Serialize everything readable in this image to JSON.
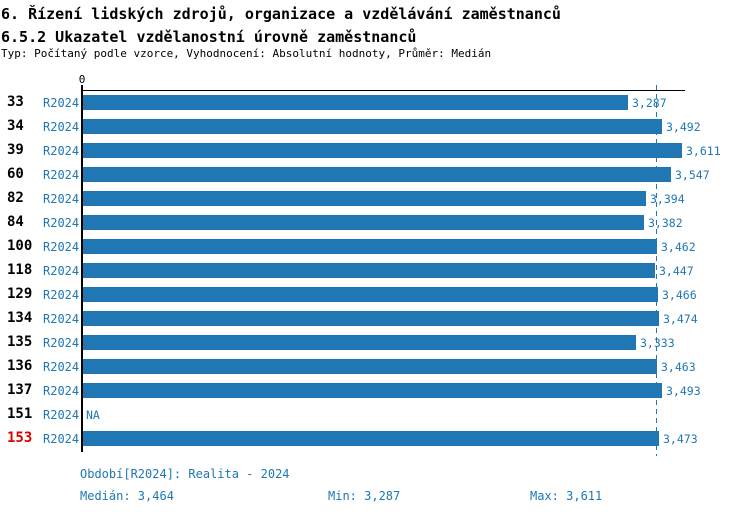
{
  "header": {
    "title_line1": "6. Řízení lidských zdrojů, organizace a vzdělávání zaměstnanců",
    "title_line2": "6.5.2 Ukazatel vzdělanostní úrovně zaměstnanců",
    "subtitle": "Typ: Počítaný podle vzorce, Vyhodnocení: Absolutní hodnoty, Průměr: Medián"
  },
  "chart_data": {
    "type": "bar",
    "orientation": "horizontal",
    "title": "6.5.2 Ukazatel vzdělanostní úrovně zaměstnanců",
    "categories": [
      "33",
      "34",
      "39",
      "60",
      "82",
      "84",
      "100",
      "118",
      "129",
      "134",
      "135",
      "136",
      "137",
      "151",
      "153"
    ],
    "period_label": "R2024",
    "series": [
      {
        "name": "R2024",
        "values": [
          3287,
          3492,
          3611,
          3547,
          3394,
          3382,
          3462,
          3447,
          3466,
          3474,
          3333,
          3463,
          3493,
          null,
          3473
        ]
      }
    ],
    "value_labels": [
      "3,287",
      "3,492",
      "3,611",
      "3,547",
      "3,394",
      "3,382",
      "3,462",
      "3,447",
      "3,466",
      "3,474",
      "3,333",
      "3,463",
      "3,493",
      "NA",
      "3,473"
    ],
    "na_label": "NA",
    "xlim": [
      0,
      3630
    ],
    "x_tick_labels": [
      "0"
    ],
    "median_value": 3464,
    "min_value": 3287,
    "max_value": 3611,
    "highlighted_category": "153",
    "grid": false,
    "legend_position": "none",
    "colors": {
      "bar": "#2077b4",
      "text_blue": "#1f77b4",
      "text_black": "#000000",
      "highlight_red": "#e00000"
    }
  },
  "footer": {
    "period_line": "Období[R2024]: Realita - 2024",
    "median": "Medián: 3,464",
    "min": "Min: 3,287",
    "max": "Max: 3,611"
  }
}
